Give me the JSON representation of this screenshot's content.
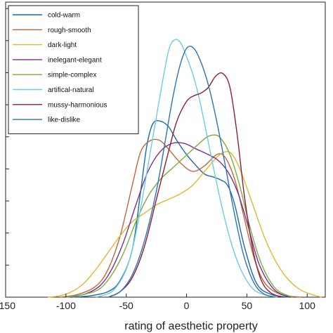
{
  "chart_data": {
    "type": "line",
    "xlabel": "rating of aesthetic property",
    "ylabel": "",
    "xlim": [
      -150,
      115
    ],
    "ylim": [
      0,
      1
    ],
    "xticks": [
      -150,
      -100,
      -50,
      0,
      50,
      100
    ],
    "xtick_labels": [
      "-150",
      "-100",
      "-50",
      "0",
      "50",
      "100"
    ],
    "ytick_count": 9,
    "legend_placement": "top-left",
    "grid": false,
    "series": [
      {
        "name": "cold-warm",
        "color": "#1a6aa8",
        "x": [
          -95,
          -80,
          -65,
          -55,
          -45,
          -38,
          -33,
          -28,
          -22,
          -15,
          -8,
          0,
          8,
          15,
          22,
          28,
          34,
          40,
          48,
          58,
          70,
          85
        ],
        "y": [
          0.0,
          0.005,
          0.02,
          0.06,
          0.17,
          0.38,
          0.54,
          0.62,
          0.63,
          0.61,
          0.56,
          0.51,
          0.47,
          0.44,
          0.43,
          0.42,
          0.4,
          0.33,
          0.18,
          0.05,
          0.01,
          0.0
        ]
      },
      {
        "name": "rough-smooth",
        "color": "#c0673a",
        "x": [
          -105,
          -90,
          -75,
          -65,
          -55,
          -45,
          -38,
          -30,
          -22,
          -15,
          -5,
          5,
          15,
          25,
          32,
          40,
          48,
          56,
          65,
          78,
          95
        ],
        "y": [
          0.0,
          0.01,
          0.04,
          0.1,
          0.22,
          0.4,
          0.52,
          0.56,
          0.56,
          0.53,
          0.48,
          0.45,
          0.47,
          0.51,
          0.5,
          0.42,
          0.28,
          0.14,
          0.05,
          0.01,
          0.0
        ]
      },
      {
        "name": "dark-light",
        "color": "#e2b730",
        "x": [
          -115,
          -105,
          -95,
          -85,
          -75,
          -65,
          -55,
          -45,
          -35,
          -25,
          -15,
          -5,
          5,
          15,
          25,
          32,
          38,
          45,
          55,
          65,
          75,
          85,
          95,
          105,
          112
        ],
        "y": [
          0.0,
          0.005,
          0.02,
          0.05,
          0.1,
          0.16,
          0.22,
          0.27,
          0.3,
          0.33,
          0.35,
          0.37,
          0.4,
          0.45,
          0.5,
          0.52,
          0.51,
          0.45,
          0.33,
          0.21,
          0.12,
          0.06,
          0.025,
          0.008,
          0.0
        ]
      },
      {
        "name": "inelegant-elegant",
        "color": "#7a2f8f",
        "x": [
          -100,
          -85,
          -72,
          -62,
          -52,
          -42,
          -32,
          -22,
          -12,
          -2,
          8,
          18,
          26,
          34,
          42,
          50,
          60,
          72,
          85
        ],
        "y": [
          0.0,
          0.01,
          0.04,
          0.1,
          0.2,
          0.33,
          0.45,
          0.52,
          0.55,
          0.55,
          0.53,
          0.51,
          0.49,
          0.45,
          0.38,
          0.27,
          0.12,
          0.03,
          0.0
        ]
      },
      {
        "name": "simple-complex",
        "color": "#7cae3c",
        "x": [
          -100,
          -85,
          -72,
          -62,
          -52,
          -42,
          -32,
          -22,
          -12,
          -2,
          8,
          16,
          22,
          28,
          36,
          44,
          52,
          62,
          74,
          88
        ],
        "y": [
          0.0,
          0.01,
          0.03,
          0.08,
          0.16,
          0.27,
          0.36,
          0.42,
          0.46,
          0.5,
          0.54,
          0.57,
          0.58,
          0.57,
          0.51,
          0.4,
          0.26,
          0.12,
          0.03,
          0.0
        ]
      },
      {
        "name": "artifical-natural",
        "color": "#6ecbe6",
        "x": [
          -75,
          -62,
          -52,
          -45,
          -38,
          -30,
          -22,
          -15,
          -10,
          -5,
          0,
          5,
          10,
          15,
          22,
          30,
          38,
          46,
          55,
          65,
          75
        ],
        "y": [
          0.0,
          0.02,
          0.08,
          0.17,
          0.32,
          0.52,
          0.72,
          0.88,
          0.92,
          0.91,
          0.86,
          0.8,
          0.72,
          0.62,
          0.47,
          0.31,
          0.18,
          0.09,
          0.03,
          0.008,
          0.0
        ]
      },
      {
        "name": "mussy-harmonious",
        "color": "#8a1f3a",
        "x": [
          -65,
          -55,
          -45,
          -35,
          -25,
          -15,
          -8,
          0,
          6,
          12,
          18,
          24,
          30,
          36,
          42,
          48,
          55,
          62,
          70,
          80
        ],
        "y": [
          0.0,
          0.02,
          0.07,
          0.18,
          0.35,
          0.52,
          0.63,
          0.7,
          0.72,
          0.73,
          0.75,
          0.79,
          0.8,
          0.75,
          0.58,
          0.36,
          0.17,
          0.06,
          0.015,
          0.0
        ]
      },
      {
        "name": "like-dislike",
        "color": "#2d73b8",
        "x": [
          -65,
          -55,
          -45,
          -35,
          -25,
          -18,
          -12,
          -6,
          0,
          6,
          12,
          18,
          24,
          30,
          36,
          42,
          48,
          56,
          64,
          74
        ],
        "y": [
          0.0,
          0.02,
          0.08,
          0.2,
          0.38,
          0.55,
          0.7,
          0.82,
          0.89,
          0.89,
          0.84,
          0.76,
          0.65,
          0.52,
          0.38,
          0.25,
          0.14,
          0.05,
          0.012,
          0.0
        ]
      }
    ]
  }
}
